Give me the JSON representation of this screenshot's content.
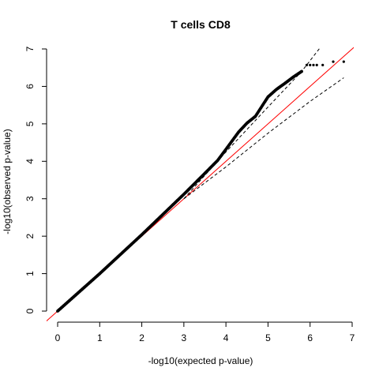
{
  "chart_data": {
    "type": "scatter",
    "title": "T cells CD8",
    "xlabel": "-log10(expected p-value)",
    "ylabel": "-log10(observed p-value)",
    "xlim": [
      0,
      7
    ],
    "ylim": [
      0,
      7
    ],
    "x_ticks": [
      0,
      1,
      2,
      3,
      4,
      5,
      6,
      7
    ],
    "y_ticks": [
      0,
      1,
      2,
      3,
      4,
      5,
      6,
      7
    ],
    "grid": false,
    "legend": "none",
    "colors": {
      "points": "#000000",
      "reference_line": "#ff0000",
      "confidence_band": "#000000"
    },
    "reference_line": {
      "slope": 1,
      "intercept": 0
    },
    "points_curve": [
      [
        0.0,
        0.0
      ],
      [
        0.5,
        0.5
      ],
      [
        1.0,
        1.0
      ],
      [
        1.5,
        1.52
      ],
      [
        2.0,
        2.04
      ],
      [
        2.5,
        2.58
      ],
      [
        3.0,
        3.12
      ],
      [
        3.5,
        3.68
      ],
      [
        3.8,
        4.02
      ],
      [
        4.0,
        4.32
      ],
      [
        4.3,
        4.78
      ],
      [
        4.5,
        5.02
      ],
      [
        4.7,
        5.2
      ],
      [
        5.0,
        5.72
      ],
      [
        5.2,
        5.92
      ],
      [
        5.4,
        6.08
      ],
      [
        5.6,
        6.25
      ],
      [
        5.8,
        6.4
      ]
    ],
    "tail_points": [
      [
        5.92,
        6.57
      ],
      [
        6.0,
        6.57
      ],
      [
        6.08,
        6.57
      ],
      [
        6.16,
        6.57
      ],
      [
        6.3,
        6.57
      ],
      [
        6.55,
        6.66
      ],
      [
        6.8,
        6.66
      ]
    ],
    "confidence_band": {
      "upper": [
        [
          3.0,
          3.0
        ],
        [
          4.0,
          4.25
        ],
        [
          5.0,
          5.45
        ],
        [
          5.8,
          6.4
        ],
        [
          6.25,
          7.05
        ]
      ],
      "lower": [
        [
          3.0,
          3.0
        ],
        [
          4.0,
          3.85
        ],
        [
          5.0,
          4.75
        ],
        [
          6.0,
          5.6
        ],
        [
          6.8,
          6.23
        ]
      ]
    }
  }
}
